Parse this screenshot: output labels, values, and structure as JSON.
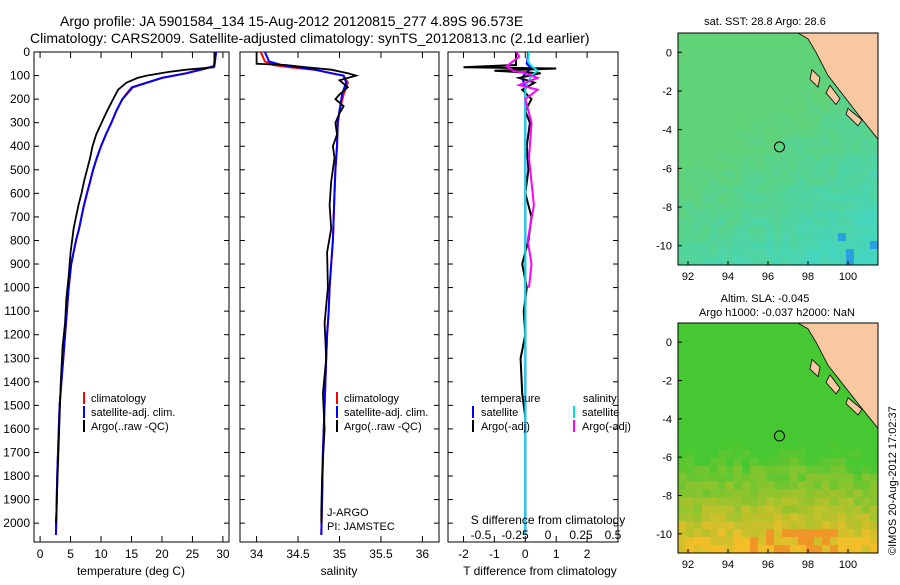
{
  "header": {
    "line1": "Argo profile: JA 5901584_134 15-Aug-2012 20120815_277 4.89S 96.573E",
    "line2": "Climatology: CARS2009. Satellite-adjusted climatology: synTS_20120813.nc (2.1d earlier)"
  },
  "colors": {
    "climatology": "#ff0000",
    "satellite": "#0000ff",
    "argo": "#000000",
    "salinity_sat": "#00e0e0",
    "salinity_argo": "#ff00ff"
  },
  "chart_data": [
    {
      "type": "line",
      "id": "temperature",
      "xlabel": "temperature (deg C)",
      "ylabel": "",
      "xlim": [
        -1,
        31
      ],
      "ylim": [
        2080,
        0
      ],
      "xticks": [
        0,
        5,
        10,
        15,
        20,
        25,
        30
      ],
      "yticks": [
        0,
        100,
        200,
        300,
        400,
        500,
        600,
        700,
        800,
        900,
        1000,
        1100,
        1200,
        1300,
        1400,
        1500,
        1600,
        1700,
        1800,
        1900,
        2000
      ],
      "legend": [
        "climatology",
        "satellite-adj. clim.",
        "Argo(..raw -QC)"
      ],
      "series": [
        {
          "name": "climatology",
          "color": "#ff0000",
          "x": [
            28.8,
            28.5,
            27.0,
            24.0,
            20.0,
            15.0,
            13.5,
            12.5,
            11.7,
            10.8,
            10.0,
            9.3,
            8.7,
            8.2,
            7.7,
            7.2,
            6.8,
            6.4,
            5.9,
            5.5,
            5.1,
            4.7,
            4.4,
            4.1,
            3.8,
            3.5,
            3.2,
            3.0,
            2.8,
            2.7,
            2.6
          ],
          "y": [
            0,
            60,
            70,
            90,
            110,
            150,
            200,
            250,
            300,
            350,
            400,
            450,
            500,
            550,
            600,
            650,
            700,
            750,
            800,
            850,
            900,
            1000,
            1100,
            1200,
            1300,
            1400,
            1500,
            1650,
            1800,
            1950,
            2050
          ]
        },
        {
          "name": "satellite-adj. clim.",
          "color": "#0000ff",
          "x": [
            28.9,
            28.6,
            27.2,
            24.1,
            20.0,
            15.2,
            13.5,
            12.5,
            11.7,
            10.8,
            10.0,
            9.3,
            8.7,
            8.2,
            7.7,
            7.2,
            6.8,
            6.4,
            5.9,
            5.5,
            5.1,
            4.7,
            4.4,
            4.1,
            3.8,
            3.5,
            3.2,
            3.0,
            2.8,
            2.7,
            2.6
          ],
          "y": [
            0,
            60,
            70,
            90,
            110,
            150,
            200,
            250,
            300,
            350,
            400,
            450,
            500,
            550,
            600,
            650,
            700,
            750,
            800,
            850,
            900,
            1000,
            1100,
            1200,
            1300,
            1400,
            1500,
            1650,
            1800,
            1950,
            2050
          ]
        },
        {
          "name": "Argo(..raw -QC)",
          "color": "#000000",
          "x": [
            28.6,
            28.6,
            28.5,
            24.0,
            21.0,
            17.5,
            16.0,
            14.2,
            12.8,
            12.0,
            11.0,
            10.1,
            9.2,
            8.6,
            8.2,
            7.7,
            7.2,
            6.8,
            6.3,
            5.9,
            5.5,
            5.0,
            4.7,
            4.3,
            4.1,
            3.7,
            3.4,
            3.2,
            3.0,
            2.8,
            2.7,
            2.6
          ],
          "y": [
            0,
            50,
            65,
            75,
            85,
            100,
            110,
            130,
            160,
            200,
            250,
            300,
            350,
            400,
            450,
            500,
            550,
            600,
            650,
            700,
            750,
            850,
            950,
            1050,
            1150,
            1250,
            1400,
            1550,
            1700,
            1850,
            1950,
            2000
          ]
        }
      ]
    },
    {
      "type": "line",
      "id": "salinity",
      "xlabel": "salinity",
      "xlim": [
        33.8,
        36.2
      ],
      "ylim": [
        2080,
        0
      ],
      "xticks": [
        34,
        34.5,
        35,
        35.5,
        36
      ],
      "legend": [
        "climatology",
        "satellite-adj. clim.",
        "Argo(..raw -QC)"
      ],
      "annotations": [
        "J-ARGO",
        "PI: JAMSTEC"
      ],
      "series": [
        {
          "name": "climatology",
          "color": "#ff0000",
          "x": [
            34.05,
            34.1,
            34.2,
            34.4,
            34.7,
            34.9,
            35.05,
            35.1,
            35.05,
            35.0,
            34.98,
            34.97,
            34.95,
            34.94,
            34.93,
            34.92,
            34.9,
            34.88,
            34.87,
            34.85,
            34.84,
            34.82,
            34.8,
            34.79,
            34.78
          ],
          "y": [
            0,
            40,
            55,
            65,
            75,
            90,
            100,
            130,
            180,
            250,
            300,
            400,
            500,
            600,
            700,
            800,
            900,
            1000,
            1100,
            1200,
            1300,
            1500,
            1700,
            1900,
            2050
          ]
        },
        {
          "name": "satellite-adj. clim.",
          "color": "#0000ff",
          "x": [
            34.1,
            34.15,
            34.3,
            34.5,
            34.7,
            34.9,
            35.05,
            35.08,
            35.03,
            35.0,
            34.98,
            34.97,
            34.95,
            34.94,
            34.93,
            34.92,
            34.9,
            34.88,
            34.87,
            34.85,
            34.84,
            34.82,
            34.8,
            34.79,
            34.78
          ],
          "y": [
            0,
            40,
            55,
            65,
            75,
            90,
            100,
            130,
            180,
            250,
            300,
            400,
            500,
            600,
            700,
            800,
            900,
            1000,
            1100,
            1200,
            1300,
            1500,
            1700,
            1900,
            2050
          ]
        },
        {
          "name": "Argo(..raw -QC)",
          "color": "#000000",
          "x": [
            34.0,
            34.0,
            34.35,
            34.6,
            34.9,
            35.1,
            35.2,
            35.0,
            35.1,
            35.0,
            34.95,
            35.05,
            35.0,
            34.95,
            34.97,
            34.92,
            34.94,
            34.9,
            34.88,
            34.9,
            34.85,
            34.86,
            34.82,
            34.84,
            34.8,
            34.82,
            34.79,
            34.78,
            34.78
          ],
          "y": [
            0,
            50,
            55,
            65,
            75,
            90,
            100,
            120,
            150,
            180,
            200,
            230,
            260,
            300,
            350,
            400,
            450,
            550,
            650,
            750,
            850,
            1000,
            1150,
            1300,
            1450,
            1600,
            1800,
            1950,
            2000
          ]
        }
      ]
    },
    {
      "type": "line",
      "id": "differences",
      "xlabel": "T difference from climatology",
      "xlabel_top": "S difference from climatology",
      "xlim": [
        -2.5,
        3.0
      ],
      "ylim": [
        2080,
        0
      ],
      "xticks": [
        -2,
        -1,
        0,
        1,
        2
      ],
      "xticks_S": [
        "-0.5",
        "-0.25",
        "0",
        "0.25",
        "0.5"
      ],
      "legend_left_title": "temperature",
      "legend_right_title": "salinity",
      "legend": [
        "satellite",
        "Argo(-adj)",
        "satellite",
        "Argo(-adj)"
      ],
      "series": [
        {
          "name": "T satellite",
          "color": "#0000ff",
          "x": [
            0.1,
            0.05,
            0.2,
            0.0,
            -0.1,
            0.0,
            0.0,
            0.0,
            0.0,
            0.0,
            0.0
          ],
          "y": [
            0,
            50,
            70,
            90,
            110,
            150,
            200,
            400,
            800,
            1500,
            2050
          ]
        },
        {
          "name": "T Argo(-adj)",
          "color": "#000000",
          "x": [
            -0.3,
            -0.3,
            -2.0,
            1.0,
            -1.0,
            0.5,
            -0.2,
            0.3,
            -0.1,
            0.2,
            0.0,
            0.15,
            0.05,
            0.1,
            0.0,
            0.2,
            0.1,
            -0.1,
            0.05,
            -0.05,
            0.0,
            -0.15,
            -0.1,
            0.0
          ],
          "y": [
            0,
            55,
            65,
            70,
            80,
            90,
            110,
            130,
            160,
            200,
            250,
            300,
            400,
            500,
            600,
            700,
            800,
            900,
            1000,
            1100,
            1200,
            1300,
            1450,
            1550
          ]
        },
        {
          "name": "S satellite",
          "color": "#00e0e0",
          "x": [
            0.03,
            0.02,
            0.05,
            0.1,
            0.05,
            0.0,
            0.0,
            0.0,
            0.0,
            0.0
          ],
          "y": [
            0,
            40,
            60,
            80,
            100,
            150,
            300,
            800,
            1500,
            2050
          ]
        },
        {
          "name": "S Argo(-adj)",
          "color": "#ff00ff",
          "x": [
            -0.07,
            -0.05,
            -0.15,
            -0.1,
            0.0,
            0.1,
            -0.05,
            0.1,
            0.0,
            0.05,
            0.03,
            0.07,
            0.02,
            0.05,
            0.03
          ],
          "y": [
            0,
            20,
            60,
            80,
            90,
            110,
            140,
            160,
            200,
            300,
            450,
            650,
            800,
            900,
            1000
          ]
        }
      ]
    },
    {
      "type": "heatmap",
      "id": "sst_map",
      "title": "sat. SST: 28.8 Argo: 28.6",
      "xlim": [
        91.5,
        101.5
      ],
      "ylim": [
        -11,
        1
      ],
      "xticks": [
        92,
        94,
        96,
        98,
        100
      ],
      "yticks": [
        0,
        -2,
        -4,
        -6,
        -8,
        -10
      ],
      "argo_lon": 96.573,
      "argo_lat": -4.89
    },
    {
      "type": "heatmap",
      "id": "sla_map",
      "title": "Altim. SLA: -0.045",
      "subtitle": "Argo h1000: -0.037 h2000: NaN",
      "xlim": [
        91.5,
        101.5
      ],
      "ylim": [
        -11,
        1
      ],
      "xticks": [
        92,
        94,
        96,
        98,
        100
      ],
      "yticks": [
        0,
        -2,
        -4,
        -6,
        -8,
        -10
      ],
      "argo_lon": 96.573,
      "argo_lat": -4.89
    }
  ],
  "footer": {
    "stamp": "©IMOS 20-Aug-2012 17:02:37"
  }
}
